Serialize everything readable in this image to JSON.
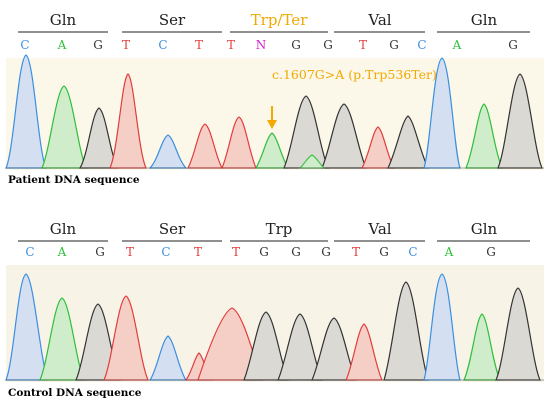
{
  "colors": {
    "A": "#2fbf3a",
    "C": "#3b8fe0",
    "G": "#333333",
    "T": "#e23c3c",
    "N": "#d01fc9",
    "mutation": "#f2a900",
    "peak_fill": {
      "A": "#cfeccb",
      "C": "#d5dff2",
      "G": "#dbd9d3",
      "T": "#f5cfc6"
    },
    "patient_bg": "#fbf7e9",
    "control_bg": "#f8f3e7"
  },
  "panels": [
    {
      "id": "patient",
      "label": "Patient DNA sequence",
      "codons": [
        {
          "label": "Gln",
          "highlight": false
        },
        {
          "label": "Ser",
          "highlight": false
        },
        {
          "label": "Trp/Ter",
          "highlight": true
        },
        {
          "label": "Val",
          "highlight": false
        },
        {
          "label": "Gln",
          "highlight": false
        }
      ],
      "bases": [
        "C",
        "A",
        "G",
        "T",
        "C",
        "T",
        "T",
        "N",
        "G",
        "G",
        "T",
        "G",
        "C",
        "A",
        "G"
      ],
      "annotation": "c.1607G>A (p.Trp536Ter)"
    },
    {
      "id": "control",
      "label": "Control DNA sequence",
      "codons": [
        {
          "label": "Gln",
          "highlight": false
        },
        {
          "label": "Ser",
          "highlight": false
        },
        {
          "label": "Trp",
          "highlight": false
        },
        {
          "label": "Val",
          "highlight": false
        },
        {
          "label": "Gln",
          "highlight": false
        }
      ],
      "bases": [
        "C",
        "A",
        "G",
        "T",
        "C",
        "T",
        "T",
        "G",
        "G",
        "G",
        "T",
        "G",
        "C",
        "A",
        "G"
      ],
      "annotation": ""
    }
  ]
}
